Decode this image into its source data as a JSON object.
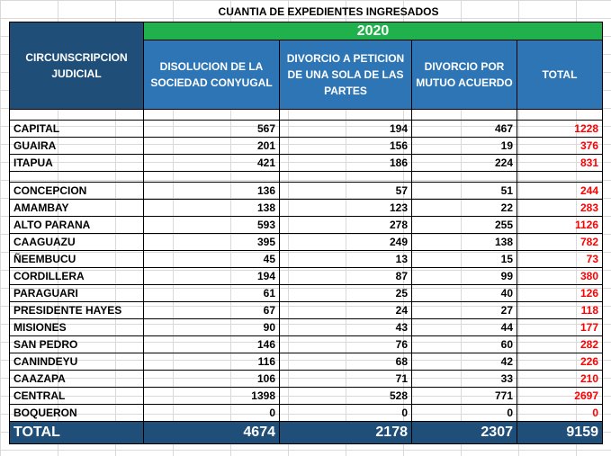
{
  "title": "CUANTIA DE EXPEDIENTES INGRESADOS",
  "year": "2020",
  "headers": {
    "circunscripcion": "CIRCUNSCRIPCION JUDICIAL",
    "disolucion": "DISOLUCION DE LA SOCIEDAD CONYUGAL",
    "divorcio_peticion": "DIVORCIO A PETICION DE UNA SOLA DE LAS PARTES",
    "divorcio_mutuo": "DIVORCIO POR MUTUO ACUERDO",
    "total": "TOTAL"
  },
  "rows": [
    {
      "name": "CAPITAL",
      "disolucion": "567",
      "peticion": "194",
      "mutuo": "467",
      "total": "1228"
    },
    {
      "name": "GUAIRA",
      "disolucion": "201",
      "peticion": "156",
      "mutuo": "19",
      "total": "376"
    },
    {
      "name": "ITAPUA",
      "disolucion": "421",
      "peticion": "186",
      "mutuo": "224",
      "total": "831"
    },
    {
      "name": "CONCEPCION",
      "disolucion": "136",
      "peticion": "57",
      "mutuo": "51",
      "total": "244"
    },
    {
      "name": "AMAMBAY",
      "disolucion": "138",
      "peticion": "123",
      "mutuo": "22",
      "total": "283"
    },
    {
      "name": "ALTO PARANA",
      "disolucion": "593",
      "peticion": "278",
      "mutuo": "255",
      "total": "1126"
    },
    {
      "name": "CAAGUAZU",
      "disolucion": "395",
      "peticion": "249",
      "mutuo": "138",
      "total": "782"
    },
    {
      "name": "ÑEEMBUCU",
      "disolucion": "45",
      "peticion": "13",
      "mutuo": "15",
      "total": "73"
    },
    {
      "name": "CORDILLERA",
      "disolucion": "194",
      "peticion": "87",
      "mutuo": "99",
      "total": "380"
    },
    {
      "name": "PARAGUARI",
      "disolucion": "61",
      "peticion": "25",
      "mutuo": "40",
      "total": "126"
    },
    {
      "name": "PRESIDENTE HAYES",
      "disolucion": "67",
      "peticion": "24",
      "mutuo": "27",
      "total": "118"
    },
    {
      "name": "MISIONES",
      "disolucion": "90",
      "peticion": "43",
      "mutuo": "44",
      "total": "177"
    },
    {
      "name": "SAN PEDRO",
      "disolucion": "146",
      "peticion": "76",
      "mutuo": "60",
      "total": "282"
    },
    {
      "name": "CANINDEYU",
      "disolucion": "116",
      "peticion": "68",
      "mutuo": "42",
      "total": "226"
    },
    {
      "name": "CAAZAPA",
      "disolucion": "106",
      "peticion": "71",
      "mutuo": "33",
      "total": "210"
    },
    {
      "name": "CENTRAL",
      "disolucion": "1398",
      "peticion": "528",
      "mutuo": "771",
      "total": "2697"
    },
    {
      "name": "BOQUERON",
      "disolucion": "0",
      "peticion": "0",
      "mutuo": "0",
      "total": "0"
    }
  ],
  "totals": {
    "label": "TOTAL",
    "disolucion": "4674",
    "peticion": "2178",
    "mutuo": "2307",
    "total": "9159"
  },
  "colors": {
    "year_band": "#21b14c",
    "header_dark": "#1f4e79",
    "header_mid": "#2e75b6",
    "total_text": "#ff0000"
  }
}
